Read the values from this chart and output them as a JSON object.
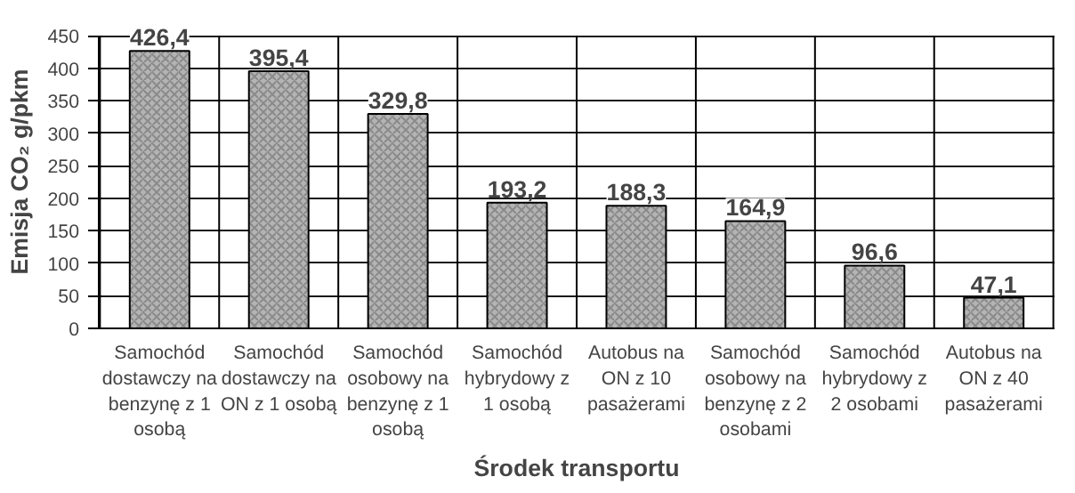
{
  "chart_data": {
    "type": "bar",
    "xlabel": "Środek transportu",
    "ylabel": "Emisja CO₂ g/pkm",
    "categories": [
      "Samochód dostawczy na benzynę z 1 osobą",
      "Samochód dostawczy na ON z 1 osobą",
      "Samochód osobowy na benzynę z 1 osobą",
      "Samochód hybrydowy z 1 osobą",
      "Autobus na ON z 10 pasażerami",
      "Samochód osobowy na benzynę z 2 osobami",
      "Samochód hybrydowy z 2 osobami",
      "Autobus na ON z 40 pasażerami"
    ],
    "values": [
      426.4,
      395.4,
      329.8,
      193.2,
      188.3,
      164.9,
      96.6,
      47.1
    ],
    "value_labels": [
      "426,4",
      "395,4",
      "329,8",
      "193,2",
      "188,3",
      "164,9",
      "96,6",
      "47,1"
    ],
    "color": "#b4b4b4",
    "ylim": [
      0,
      450
    ],
    "yticks": [
      0,
      50,
      100,
      150,
      200,
      250,
      300,
      350,
      400,
      450
    ],
    "grid": true
  }
}
